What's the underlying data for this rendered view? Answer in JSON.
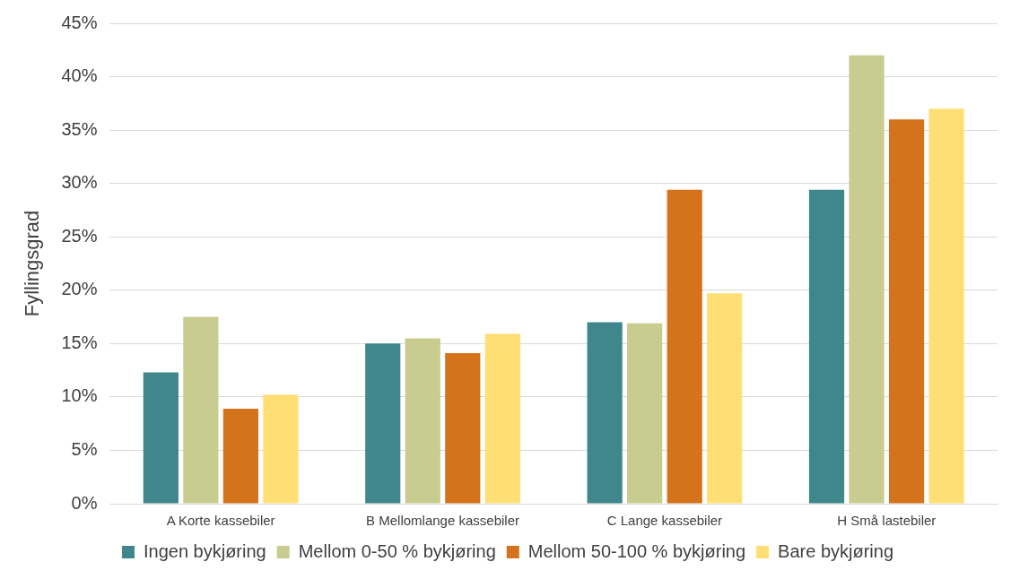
{
  "chart_data": {
    "type": "bar",
    "ylabel": "Fyllingsgrad",
    "categories": [
      "A Korte kassebiler",
      "B Mellomlange kassebiler",
      "C Lange kassebiler",
      "H Små lastebiler"
    ],
    "series": [
      {
        "name": "Ingen bykjøring",
        "color": "#3f878a",
        "values": [
          12.3,
          15.0,
          17.0,
          29.4
        ]
      },
      {
        "name": "Mellom 0-50 % bykjøring",
        "color": "#c8cc8e",
        "values": [
          17.5,
          15.5,
          16.9,
          42.0
        ]
      },
      {
        "name": "Mellom 50-100 % bykjøring",
        "color": "#d4731c",
        "values": [
          8.9,
          14.1,
          29.4,
          36.0
        ]
      },
      {
        "name": "Bare bykjøring",
        "color": "#ffdf73",
        "values": [
          10.2,
          15.9,
          19.7,
          37.0
        ]
      }
    ],
    "ylim": [
      0,
      45
    ],
    "yticks": [
      {
        "value": 0,
        "label": "0%"
      },
      {
        "value": 5,
        "label": "5%"
      },
      {
        "value": 10,
        "label": "10%"
      },
      {
        "value": 15,
        "label": "15%"
      },
      {
        "value": 20,
        "label": "20%"
      },
      {
        "value": 25,
        "label": "25%"
      },
      {
        "value": 30,
        "label": "30%"
      },
      {
        "value": 35,
        "label": "35%"
      },
      {
        "value": 40,
        "label": "40%"
      },
      {
        "value": 45,
        "label": "45%"
      }
    ],
    "grid": "y",
    "legend": "bottom"
  }
}
